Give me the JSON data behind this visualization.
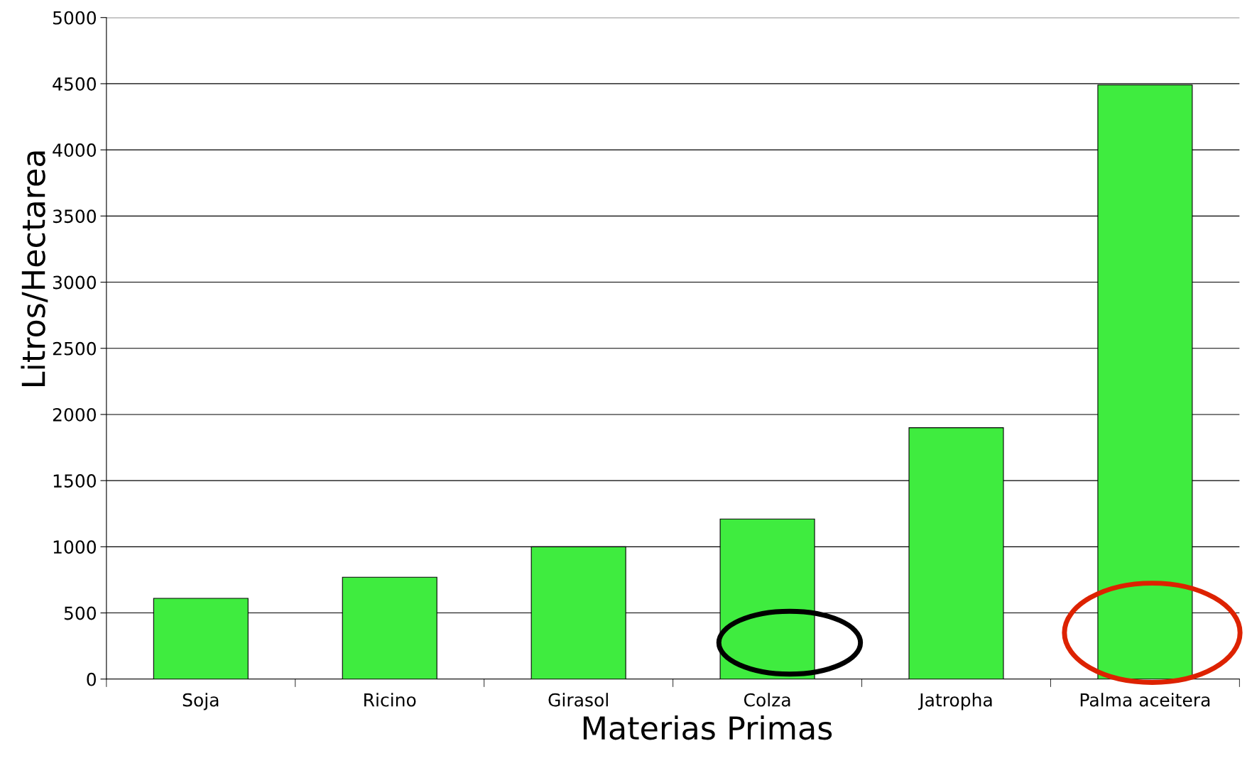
{
  "chart_data": {
    "type": "bar",
    "xlabel": "Materias Primas",
    "ylabel": "Litros/Hectarea",
    "categories": [
      "Soja",
      "Ricino",
      "Girasol",
      "Colza",
      "Jatropha",
      "Palma aceitera"
    ],
    "values": [
      610,
      770,
      1000,
      1210,
      1900,
      4490
    ],
    "color": "#3fec3f",
    "ylim": [
      0,
      5000
    ],
    "yticks": [
      0,
      500,
      1000,
      1500,
      2000,
      2500,
      3000,
      3500,
      4000,
      4500,
      5000
    ],
    "grid": "y",
    "legend": false
  }
}
